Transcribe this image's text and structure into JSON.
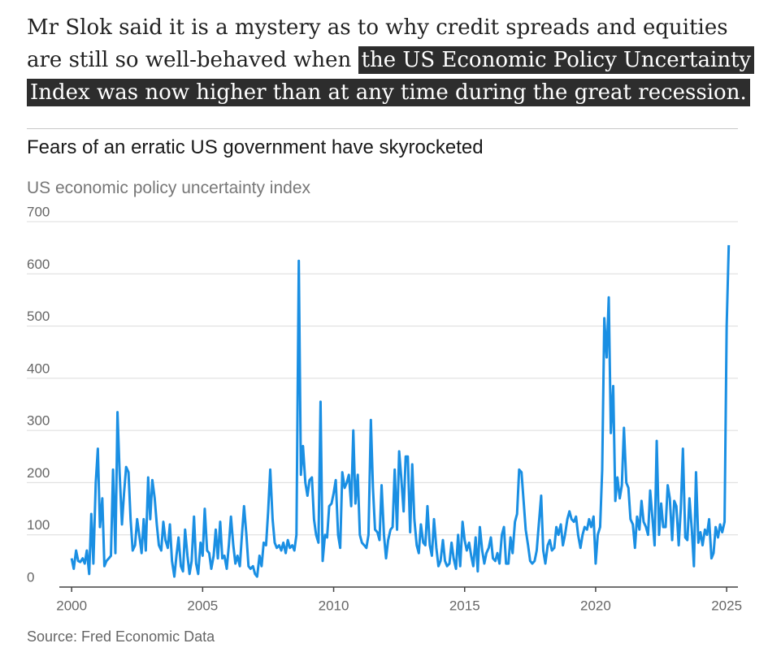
{
  "article": {
    "paragraph_plain": "Mr Slok said it is a mystery as to why credit spreads and equities are still so well-behaved when ",
    "paragraph_highlight": "the US Economic Policy Uncertainty Index was now higher than at any time during the great recession."
  },
  "chart_data": {
    "type": "line",
    "title": "Fears of an erratic US government have skyrocketed",
    "subtitle": "US economic policy uncertainty index",
    "source": "Source: Fred Economic Data",
    "color": "#1a8fe3",
    "grid": true,
    "xlim": [
      1999.53,
      2025.43
    ],
    "ylim": [
      0,
      700
    ],
    "xticks": [
      2000,
      2005,
      2010,
      2015,
      2020,
      2025
    ],
    "yticks": [
      0,
      100,
      200,
      300,
      400,
      500,
      600,
      700
    ],
    "x": [
      2000,
      2000.08,
      2000.17,
      2000.25,
      2000.33,
      2000.42,
      2000.5,
      2000.58,
      2000.67,
      2000.75,
      2000.83,
      2000.92,
      2001,
      2001.08,
      2001.17,
      2001.25,
      2001.33,
      2001.42,
      2001.5,
      2001.58,
      2001.67,
      2001.75,
      2001.83,
      2001.92,
      2002,
      2002.08,
      2002.17,
      2002.25,
      2002.33,
      2002.42,
      2002.5,
      2002.58,
      2002.67,
      2002.75,
      2002.83,
      2002.92,
      2003,
      2003.08,
      2003.17,
      2003.25,
      2003.33,
      2003.42,
      2003.5,
      2003.58,
      2003.67,
      2003.75,
      2003.83,
      2003.92,
      2004,
      2004.08,
      2004.17,
      2004.25,
      2004.33,
      2004.42,
      2004.5,
      2004.58,
      2004.67,
      2004.75,
      2004.83,
      2004.92,
      2005,
      2005.08,
      2005.17,
      2005.25,
      2005.33,
      2005.42,
      2005.5,
      2005.58,
      2005.67,
      2005.75,
      2005.83,
      2005.92,
      2006,
      2006.08,
      2006.17,
      2006.25,
      2006.33,
      2006.42,
      2006.5,
      2006.58,
      2006.67,
      2006.75,
      2006.83,
      2006.92,
      2007,
      2007.08,
      2007.17,
      2007.25,
      2007.33,
      2007.42,
      2007.5,
      2007.58,
      2007.67,
      2007.75,
      2007.83,
      2007.92,
      2008,
      2008.08,
      2008.17,
      2008.25,
      2008.33,
      2008.42,
      2008.5,
      2008.58,
      2008.67,
      2008.75,
      2008.83,
      2008.92,
      2009,
      2009.08,
      2009.17,
      2009.25,
      2009.33,
      2009.42,
      2009.5,
      2009.58,
      2009.67,
      2009.75,
      2009.83,
      2009.92,
      2010,
      2010.08,
      2010.17,
      2010.25,
      2010.33,
      2010.42,
      2010.5,
      2010.58,
      2010.67,
      2010.75,
      2010.83,
      2010.92,
      2011,
      2011.08,
      2011.17,
      2011.25,
      2011.33,
      2011.42,
      2011.5,
      2011.58,
      2011.67,
      2011.75,
      2011.83,
      2011.92,
      2012,
      2012.08,
      2012.17,
      2012.25,
      2012.33,
      2012.42,
      2012.5,
      2012.58,
      2012.67,
      2012.75,
      2012.83,
      2012.92,
      2013,
      2013.08,
      2013.17,
      2013.25,
      2013.33,
      2013.42,
      2013.5,
      2013.58,
      2013.67,
      2013.75,
      2013.83,
      2013.92,
      2014,
      2014.08,
      2014.17,
      2014.25,
      2014.33,
      2014.42,
      2014.5,
      2014.58,
      2014.67,
      2014.75,
      2014.83,
      2014.92,
      2015,
      2015.08,
      2015.17,
      2015.25,
      2015.33,
      2015.42,
      2015.5,
      2015.58,
      2015.67,
      2015.75,
      2015.83,
      2015.92,
      2016,
      2016.08,
      2016.17,
      2016.25,
      2016.33,
      2016.42,
      2016.5,
      2016.58,
      2016.67,
      2016.75,
      2016.83,
      2016.92,
      2017,
      2017.08,
      2017.17,
      2017.25,
      2017.33,
      2017.42,
      2017.5,
      2017.58,
      2017.67,
      2017.75,
      2017.83,
      2017.92,
      2018,
      2018.08,
      2018.17,
      2018.25,
      2018.33,
      2018.42,
      2018.5,
      2018.58,
      2018.67,
      2018.75,
      2018.83,
      2018.92,
      2019,
      2019.08,
      2019.17,
      2019.25,
      2019.33,
      2019.42,
      2019.5,
      2019.58,
      2019.67,
      2019.75,
      2019.83,
      2019.92,
      2020,
      2020.08,
      2020.17,
      2020.25,
      2020.33,
      2020.42,
      2020.5,
      2020.58,
      2020.67,
      2020.75,
      2020.83,
      2020.92,
      2021,
      2021.08,
      2021.17,
      2021.25,
      2021.33,
      2021.42,
      2021.5,
      2021.58,
      2021.67,
      2021.75,
      2021.83,
      2021.92,
      2022,
      2022.08,
      2022.17,
      2022.25,
      2022.33,
      2022.42,
      2022.5,
      2022.58,
      2022.67,
      2022.75,
      2022.83,
      2022.92,
      2023,
      2023.08,
      2023.17,
      2023.25,
      2023.33,
      2023.42,
      2023.5,
      2023.58,
      2023.67,
      2023.75,
      2023.83,
      2023.92,
      2024,
      2024.08,
      2024.17,
      2024.25,
      2024.33,
      2024.42,
      2024.5,
      2024.58,
      2024.67,
      2024.75,
      2024.83,
      2024.92,
      2025,
      2025.08
    ],
    "values": [
      55,
      35,
      70,
      50,
      48,
      55,
      45,
      70,
      25,
      140,
      45,
      200,
      265,
      115,
      170,
      40,
      50,
      55,
      60,
      225,
      65,
      335,
      220,
      120,
      180,
      230,
      220,
      130,
      70,
      80,
      130,
      100,
      65,
      130,
      70,
      210,
      130,
      205,
      170,
      120,
      80,
      70,
      125,
      90,
      75,
      120,
      50,
      20,
      60,
      95,
      40,
      30,
      110,
      60,
      25,
      50,
      135,
      45,
      25,
      85,
      60,
      150,
      70,
      65,
      35,
      60,
      110,
      55,
      125,
      55,
      60,
      35,
      80,
      135,
      80,
      45,
      60,
      40,
      100,
      155,
      100,
      40,
      35,
      40,
      25,
      20,
      60,
      40,
      85,
      80,
      145,
      225,
      130,
      85,
      75,
      80,
      70,
      85,
      65,
      90,
      75,
      80,
      70,
      100,
      625,
      215,
      270,
      200,
      175,
      205,
      210,
      130,
      100,
      85,
      355,
      50,
      100,
      95,
      155,
      160,
      180,
      205,
      100,
      75,
      220,
      190,
      200,
      215,
      155,
      300,
      160,
      215,
      100,
      85,
      80,
      75,
      100,
      320,
      190,
      110,
      105,
      90,
      195,
      100,
      55,
      90,
      110,
      115,
      225,
      110,
      260,
      210,
      145,
      250,
      250,
      105,
      235,
      130,
      80,
      65,
      120,
      85,
      80,
      155,
      80,
      60,
      130,
      75,
      40,
      50,
      90,
      50,
      40,
      45,
      85,
      55,
      35,
      100,
      40,
      125,
      90,
      70,
      85,
      60,
      40,
      95,
      30,
      115,
      70,
      45,
      65,
      75,
      95,
      55,
      50,
      65,
      45,
      100,
      115,
      45,
      45,
      95,
      65,
      125,
      140,
      225,
      220,
      165,
      110,
      80,
      50,
      45,
      50,
      70,
      120,
      175,
      70,
      45,
      80,
      90,
      70,
      75,
      115,
      100,
      120,
      80,
      100,
      130,
      145,
      130,
      125,
      135,
      100,
      75,
      100,
      115,
      110,
      130,
      115,
      135,
      45,
      100,
      115,
      225,
      515,
      440,
      555,
      295,
      385,
      165,
      210,
      170,
      195,
      305,
      200,
      190,
      130,
      120,
      75,
      135,
      110,
      165,
      125,
      115,
      100,
      185,
      130,
      80,
      280,
      100,
      160,
      115,
      115,
      195,
      170,
      90,
      165,
      155,
      80,
      150,
      265,
      95,
      90,
      170,
      110,
      40,
      220,
      85,
      105,
      80,
      110,
      100,
      130,
      55,
      65,
      115,
      95,
      120,
      105,
      125,
      500,
      655
    ]
  }
}
